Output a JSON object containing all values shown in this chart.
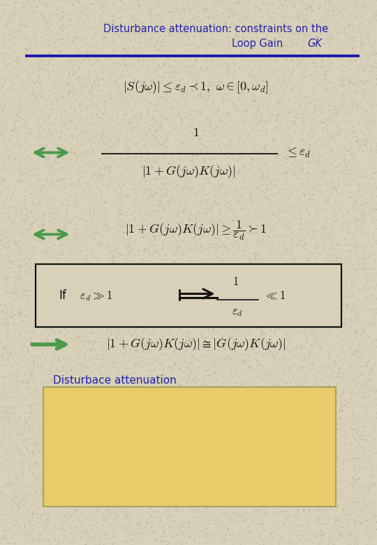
{
  "title_line1": "Disturbance attenuation: constraints on the",
  "title_line2": "Loop Gain ",
  "title_italic": "GK",
  "title_color": "#2222aa",
  "bg_color": "#d8d0b8",
  "line_color": "#1a1aaa",
  "arrow_color": "#4a9a4a",
  "text_color": "#111111",
  "box_color": "#111111",
  "yellow_box_color": "#e8cc6a",
  "label_disturbace": "Disturbace attenuation"
}
